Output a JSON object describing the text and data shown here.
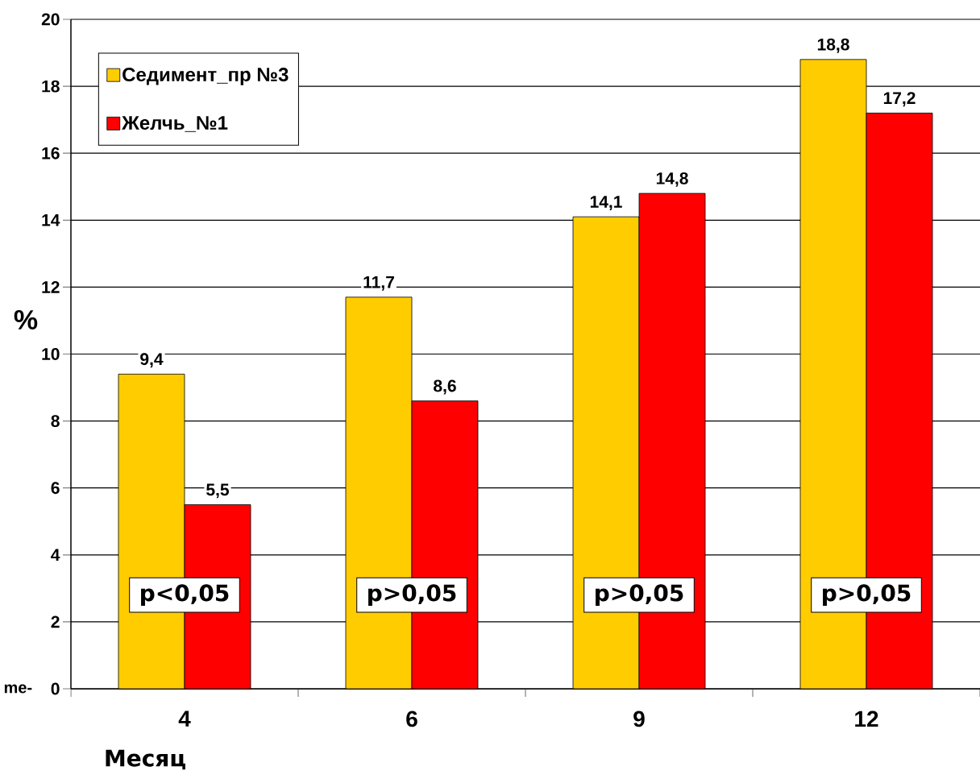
{
  "chart_data": {
    "type": "bar",
    "ylabel": "%",
    "xlabel": "Месяц",
    "categories": [
      "4",
      "6",
      "9",
      "12"
    ],
    "series": [
      {
        "name": "Седимент_пр №3",
        "color": "#ffcc00",
        "values": [
          9.4,
          11.7,
          14.1,
          18.8
        ]
      },
      {
        "name": "Желчь_№1",
        "color": "#ff0000",
        "values": [
          5.5,
          8.6,
          14.8,
          17.2
        ]
      }
    ],
    "value_labels": [
      [
        "9,4",
        "11,7",
        "14,1",
        "18,8"
      ],
      [
        "5,5",
        "8,6",
        "14,8",
        "17,2"
      ]
    ],
    "ylim": [
      0,
      20
    ],
    "yticks": [
      0,
      2,
      4,
      6,
      8,
      10,
      12,
      14,
      16,
      18,
      20
    ],
    "grid": "y",
    "legend": "top left",
    "annotations": [
      "p<0,05",
      "p>0,05",
      "p>0,05",
      "p>0,05",
      "me-"
    ]
  }
}
